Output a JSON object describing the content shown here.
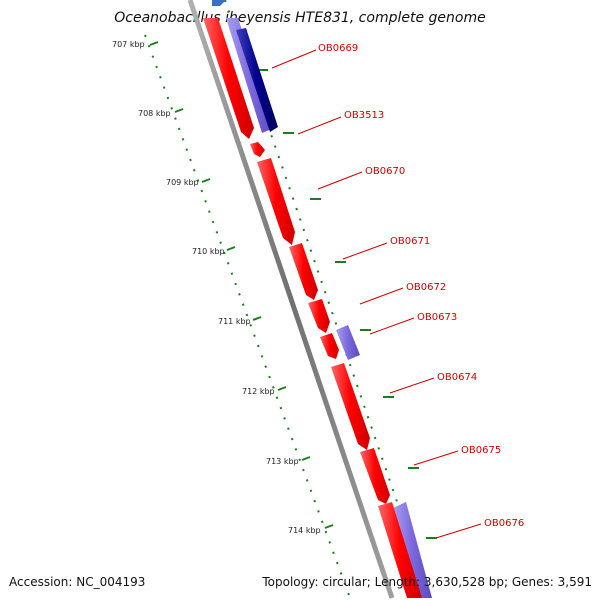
{
  "title": "Oceanobacillus iheyensis HTE831, complete genome",
  "footer": {
    "accession": "Accession: NC_004193",
    "summary": "Topology: circular; Length: 3,630,528 bp; Genes: 3,591"
  },
  "ticks": [
    "707 kbp",
    "708 kbp",
    "709 kbp",
    "710 kbp",
    "711 kbp",
    "712 kbp",
    "713 kbp",
    "714 kbp"
  ],
  "genes": [
    "OB0669",
    "OB3513",
    "OB0670",
    "OB0671",
    "OB0672",
    "OB0673",
    "OB0674",
    "OB0675",
    "OB0676"
  ],
  "colors": {
    "forward_gene": "#ff0000",
    "reverse_gene": "#7b68dd",
    "reverse_gene_dark": "#00008b",
    "backbone": "#808080",
    "ruler": "#1a7f1a",
    "label": "#d00000"
  }
}
